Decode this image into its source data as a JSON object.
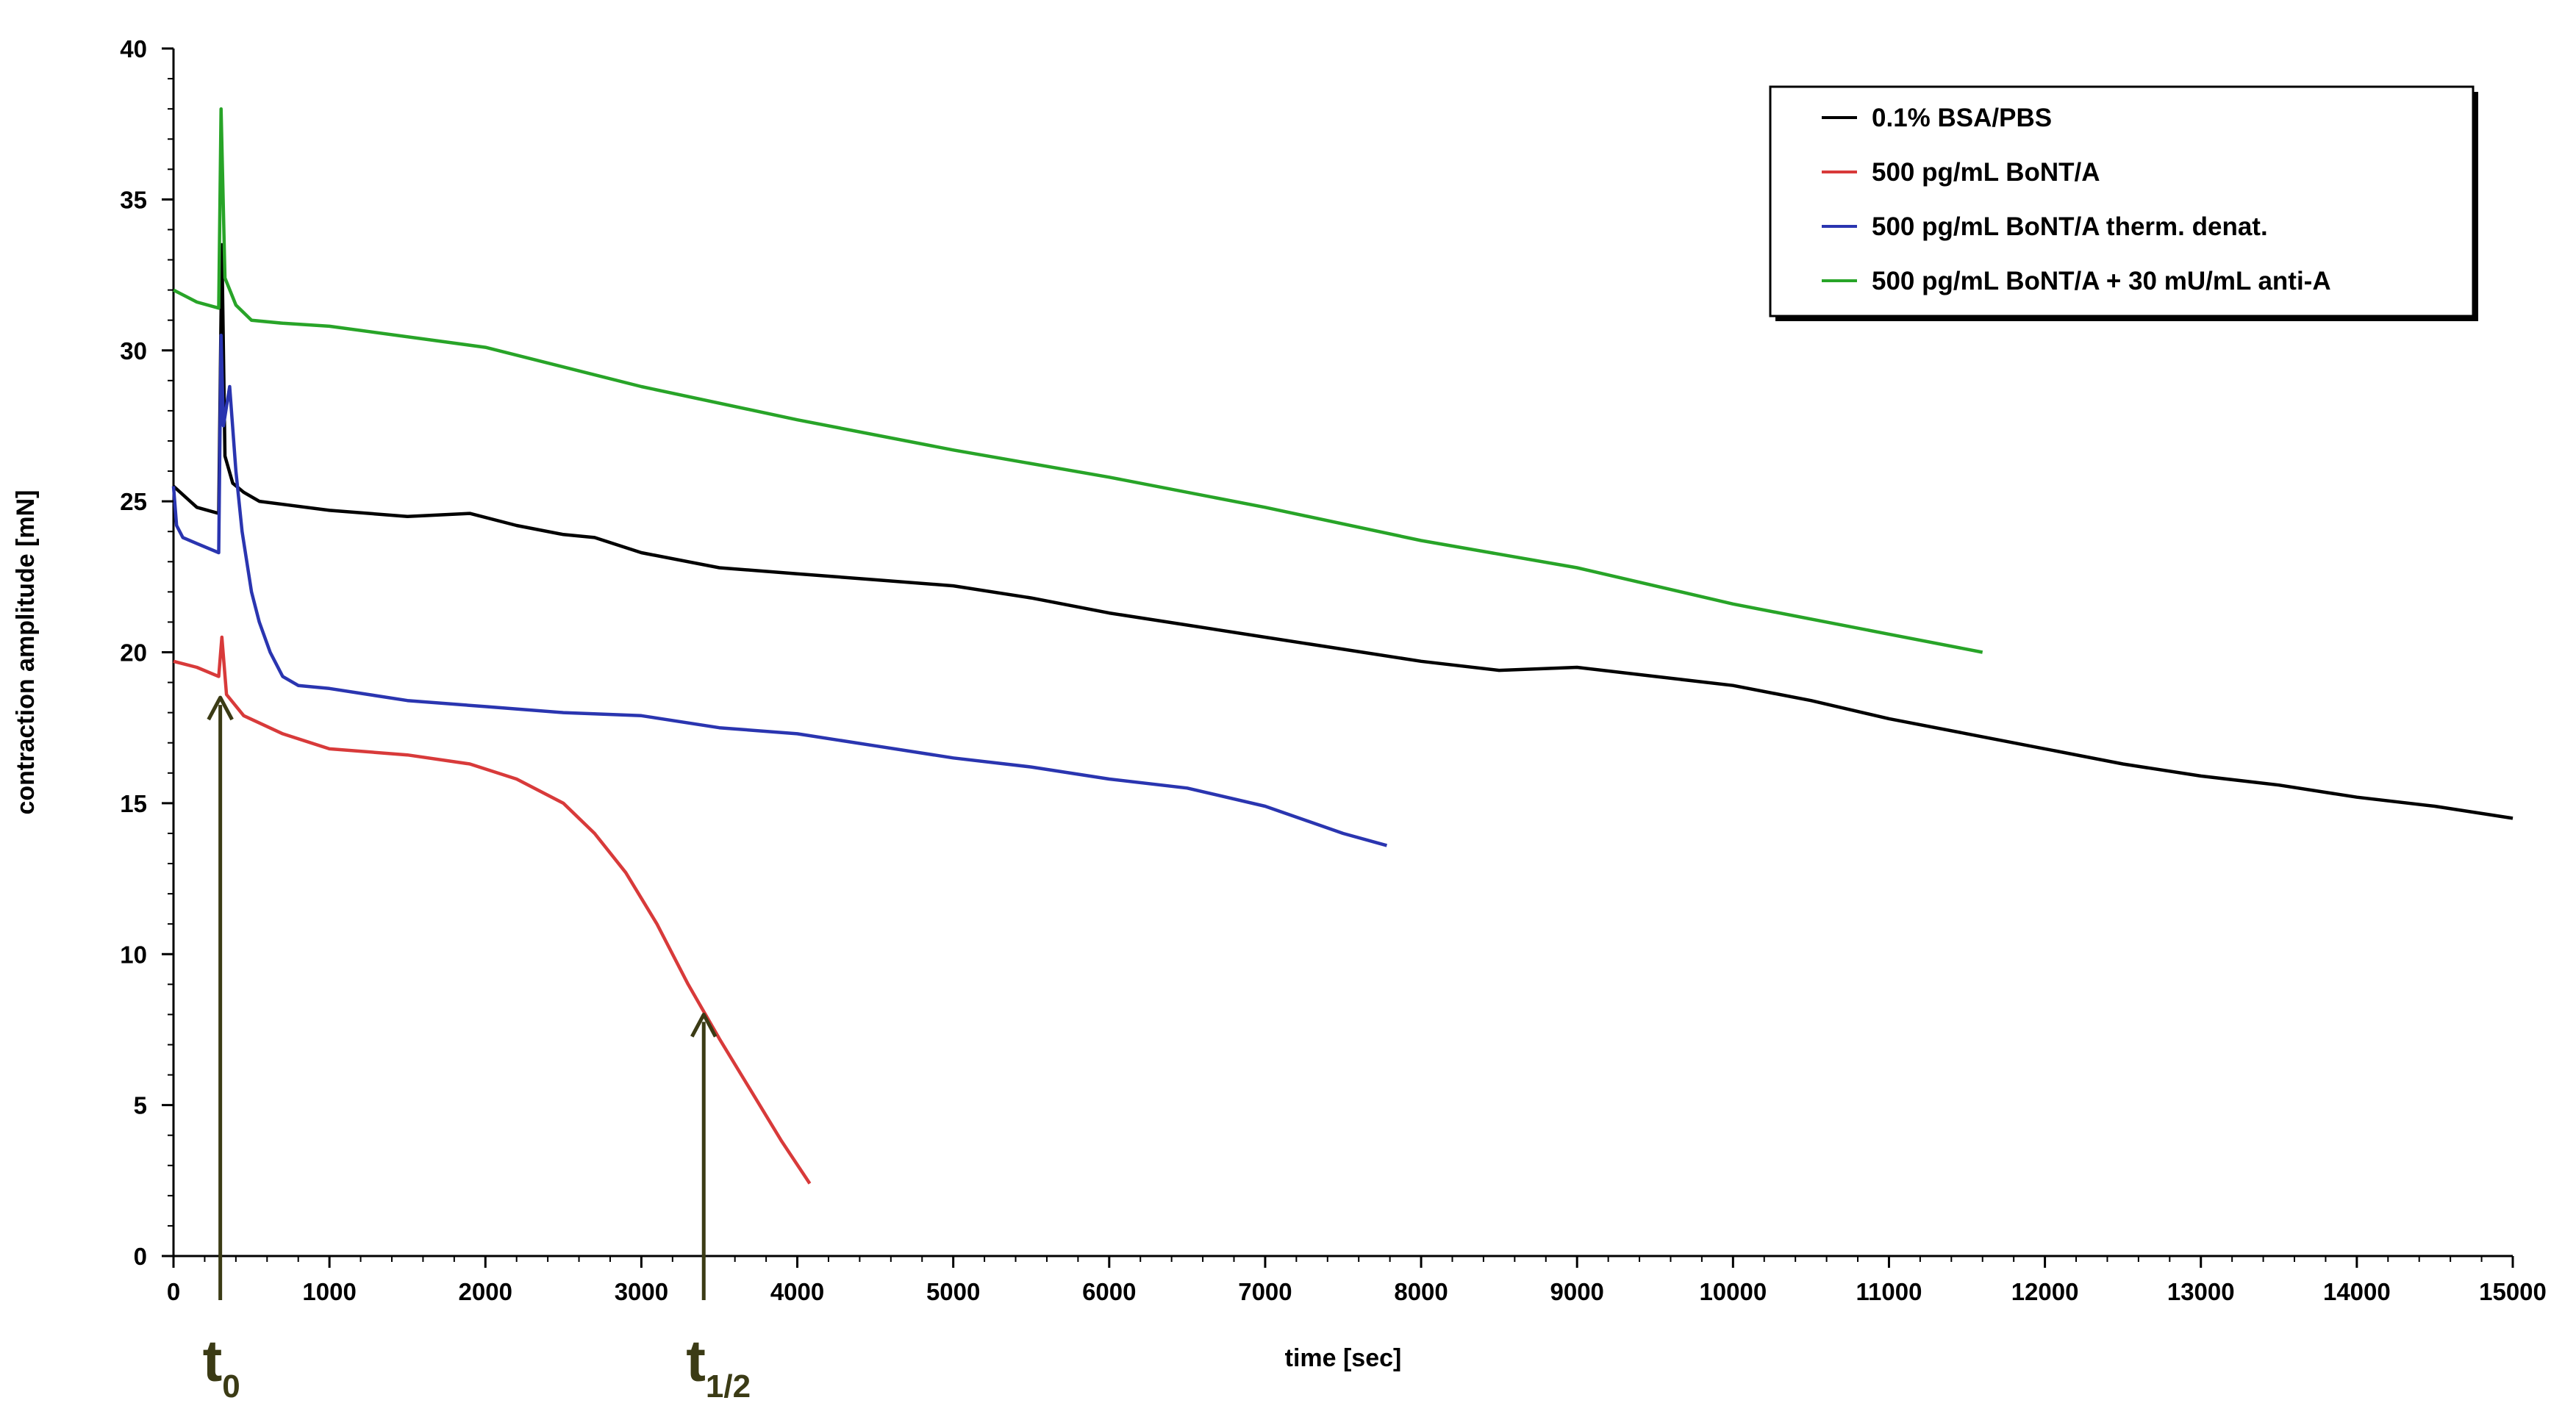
{
  "chart_data": {
    "type": "line",
    "title": "",
    "xlabel": "time [sec]",
    "ylabel": "contraction amplitude [mN]",
    "xlim": [
      0,
      15000
    ],
    "ylim": [
      0,
      40
    ],
    "x_ticks": [
      0,
      1000,
      2000,
      3000,
      4000,
      5000,
      6000,
      7000,
      8000,
      9000,
      10000,
      11000,
      12000,
      13000,
      14000,
      15000
    ],
    "y_ticks": [
      0,
      5,
      10,
      15,
      20,
      25,
      30,
      35,
      40
    ],
    "grid": false,
    "legend_position": "top-right",
    "series": [
      {
        "name": "0.1% BSA/PBS",
        "color": "#000000",
        "x": [
          0,
          150,
          290,
          310,
          330,
          380,
          450,
          550,
          700,
          1000,
          1500,
          1900,
          2200,
          2500,
          2700,
          3000,
          3500,
          4000,
          4500,
          5000,
          5500,
          6000,
          6500,
          7000,
          7500,
          8000,
          8500,
          9000,
          9500,
          10000,
          10500,
          11000,
          11500,
          12000,
          12500,
          13000,
          13500,
          14000,
          14500,
          15000
        ],
        "y": [
          25.5,
          24.8,
          24.6,
          33.5,
          26.5,
          25.6,
          25.3,
          25.0,
          24.9,
          24.7,
          24.5,
          24.6,
          24.2,
          23.9,
          23.8,
          23.3,
          22.8,
          22.6,
          22.4,
          22.2,
          21.8,
          21.3,
          20.9,
          20.5,
          20.1,
          19.7,
          19.4,
          19.5,
          19.2,
          18.9,
          18.4,
          17.8,
          17.3,
          16.8,
          16.3,
          15.9,
          15.6,
          15.2,
          14.9,
          14.5
        ]
      },
      {
        "name": "500 pg/mL BoNT/A",
        "color": "#d83a3a",
        "x": [
          0,
          150,
          290,
          310,
          340,
          450,
          700,
          1000,
          1500,
          1900,
          2200,
          2500,
          2700,
          2900,
          3100,
          3300,
          3500,
          3700,
          3900,
          4080
        ],
        "y": [
          19.7,
          19.5,
          19.2,
          20.5,
          18.6,
          17.9,
          17.3,
          16.8,
          16.6,
          16.3,
          15.8,
          15.0,
          14.0,
          12.7,
          11.0,
          9.0,
          7.2,
          5.5,
          3.8,
          2.4
        ]
      },
      {
        "name": "500 pg/mL BoNT/A therm. denat.",
        "color": "#2a35b0",
        "x": [
          0,
          20,
          60,
          150,
          290,
          305,
          320,
          360,
          400,
          440,
          500,
          550,
          620,
          700,
          800,
          1000,
          1500,
          2000,
          2500,
          3000,
          3500,
          4000,
          4500,
          5000,
          5500,
          6000,
          6500,
          7000,
          7500,
          7780
        ],
        "y": [
          25.5,
          24.2,
          23.8,
          23.6,
          23.3,
          30.5,
          27.5,
          28.8,
          26.0,
          24.0,
          22.0,
          21.0,
          20.0,
          19.2,
          18.9,
          18.8,
          18.4,
          18.2,
          18.0,
          17.9,
          17.5,
          17.3,
          16.9,
          16.5,
          16.2,
          15.8,
          15.5,
          14.9,
          14.0,
          13.6
        ]
      },
      {
        "name": "500 pg/mL BoNT/A + 30 mU/mL anti-A",
        "color": "#28a428",
        "x": [
          0,
          150,
          290,
          305,
          330,
          400,
          500,
          700,
          1000,
          2000,
          3000,
          4000,
          5000,
          6000,
          7000,
          8000,
          9000,
          10000,
          11000,
          11600
        ],
        "y": [
          32.0,
          31.6,
          31.4,
          38.0,
          32.4,
          31.5,
          31.0,
          30.9,
          30.8,
          30.1,
          28.8,
          27.7,
          26.7,
          25.8,
          24.8,
          23.7,
          22.8,
          21.6,
          20.6,
          20.0
        ]
      }
    ],
    "annotations": [
      {
        "label": "t",
        "sub": "0",
        "x": 300,
        "y_tip": 18.5
      },
      {
        "label": "t",
        "sub": "1/2",
        "x": 3400,
        "y_tip": 8.0
      }
    ]
  }
}
